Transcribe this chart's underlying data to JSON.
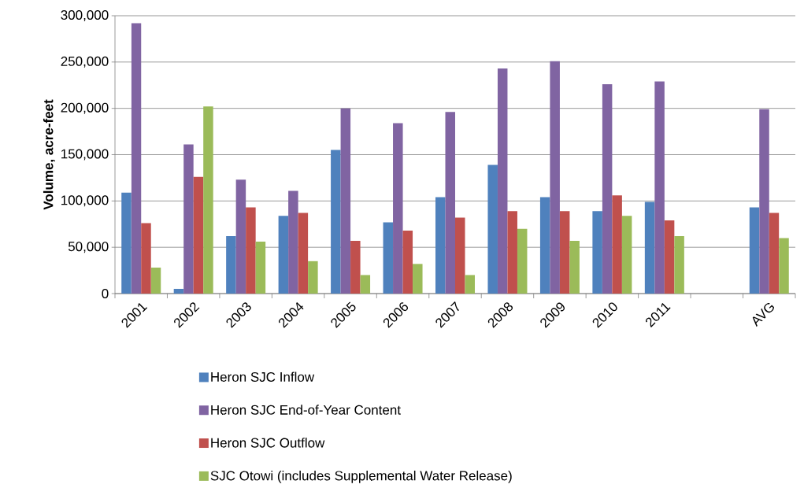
{
  "chart_data": {
    "type": "bar",
    "ylabel": "Volume, acre-feet",
    "categories": [
      "2001",
      "2002",
      "2003",
      "2004",
      "2005",
      "2006",
      "2007",
      "2008",
      "2009",
      "2010",
      "2011",
      null,
      "AVG"
    ],
    "series": [
      {
        "name": "Heron SJC Inflow",
        "color": "#4f81bd",
        "values": [
          109000,
          5000,
          62000,
          84000,
          155000,
          77000,
          104000,
          139000,
          104000,
          89000,
          99000,
          null,
          93000
        ]
      },
      {
        "name": "Heron SJC End-of-Year Content",
        "color": "#8064a2",
        "values": [
          292000,
          161000,
          123000,
          111000,
          200000,
          184000,
          196000,
          243000,
          251000,
          226000,
          229000,
          null,
          199000
        ]
      },
      {
        "name": "Heron SJC Outflow",
        "color": "#c0504d",
        "values": [
          76000,
          126000,
          93000,
          87000,
          57000,
          68000,
          82000,
          89000,
          89000,
          106000,
          79000,
          null,
          87000
        ]
      },
      {
        "name": "SJC Otowi (includes Supplemental Water Release)",
        "color": "#9bbb59",
        "values": [
          28000,
          202000,
          56000,
          35000,
          20000,
          32000,
          20000,
          70000,
          57000,
          84000,
          62000,
          null,
          60000
        ]
      }
    ],
    "ylim": [
      0,
      300000
    ],
    "yticks": [
      0,
      {
        "value": 50000,
        "label": "50,000"
      },
      {
        "value": 100000,
        "label": "100,000"
      },
      {
        "value": 150000,
        "label": "150,000"
      },
      {
        "value": 200000,
        "label": "200,000"
      },
      {
        "value": 250000,
        "label": "250,000"
      },
      {
        "value": 300000,
        "label": "300,000"
      }
    ],
    "grid": "y",
    "legend": "bottom"
  }
}
